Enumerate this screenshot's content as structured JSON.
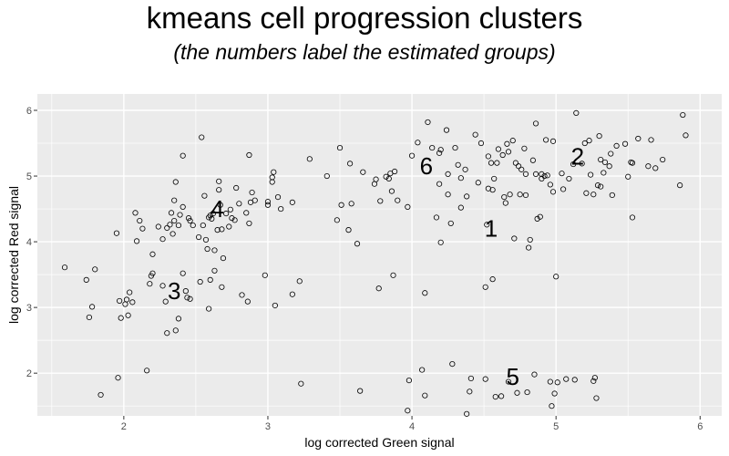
{
  "chart_data": {
    "type": "scatter",
    "title": "kmeans cell progression clusters",
    "subtitle": "(the numbers label the estimated groups)",
    "xlabel": "log corrected Green signal",
    "ylabel": "log corrected Red signal",
    "xlim": [
      1.4,
      6.15
    ],
    "ylim": [
      1.35,
      6.25
    ],
    "xticks": [
      2,
      3,
      4,
      5,
      6
    ],
    "yticks": [
      2,
      3,
      4,
      5,
      6
    ],
    "grid": true,
    "marker": "open-circle",
    "colors": {
      "panel": "#ebebeb",
      "grid": "#ffffff",
      "point": "#000000"
    },
    "cluster_labels": [
      {
        "text": "1",
        "x": 4.55,
        "y": 4.2
      },
      {
        "text": "2",
        "x": 5.15,
        "y": 5.3
      },
      {
        "text": "3",
        "x": 2.35,
        "y": 3.25
      },
      {
        "text": "4",
        "x": 2.65,
        "y": 4.5
      },
      {
        "text": "5",
        "x": 4.7,
        "y": 1.95
      },
      {
        "text": "6",
        "x": 4.1,
        "y": 5.15
      }
    ],
    "points": [
      [
        1.59,
        3.61
      ],
      [
        1.74,
        3.42
      ],
      [
        1.76,
        2.85
      ],
      [
        1.78,
        3.01
      ],
      [
        1.8,
        3.58
      ],
      [
        1.84,
        1.67
      ],
      [
        1.95,
        4.13
      ],
      [
        1.96,
        1.93
      ],
      [
        1.97,
        3.1
      ],
      [
        1.98,
        2.84
      ],
      [
        2.01,
        3.05
      ],
      [
        2.02,
        3.12
      ],
      [
        2.03,
        2.88
      ],
      [
        2.04,
        3.23
      ],
      [
        2.06,
        3.08
      ],
      [
        2.08,
        4.44
      ],
      [
        2.09,
        4.01
      ],
      [
        2.11,
        4.32
      ],
      [
        2.13,
        4.2
      ],
      [
        2.16,
        2.04
      ],
      [
        2.18,
        3.36
      ],
      [
        2.19,
        3.48
      ],
      [
        2.2,
        3.52
      ],
      [
        2.2,
        3.81
      ],
      [
        2.24,
        4.23
      ],
      [
        2.27,
        4.04
      ],
      [
        2.27,
        3.33
      ],
      [
        2.29,
        3.09
      ],
      [
        2.3,
        2.61
      ],
      [
        2.3,
        4.21
      ],
      [
        2.32,
        4.26
      ],
      [
        2.33,
        4.44
      ],
      [
        2.34,
        4.12
      ],
      [
        2.35,
        4.32
      ],
      [
        2.35,
        4.63
      ],
      [
        2.36,
        4.91
      ],
      [
        2.36,
        2.65
      ],
      [
        2.38,
        2.83
      ],
      [
        2.38,
        4.25
      ],
      [
        2.39,
        4.41
      ],
      [
        2.41,
        3.52
      ],
      [
        2.41,
        4.53
      ],
      [
        2.41,
        5.31
      ],
      [
        2.43,
        3.25
      ],
      [
        2.44,
        3.15
      ],
      [
        2.45,
        4.36
      ],
      [
        2.46,
        3.13
      ],
      [
        2.46,
        4.32
      ],
      [
        2.48,
        4.25
      ],
      [
        2.52,
        4.07
      ],
      [
        2.53,
        3.39
      ],
      [
        2.54,
        5.59
      ],
      [
        2.55,
        4.25
      ],
      [
        2.56,
        4.7
      ],
      [
        2.57,
        4.03
      ],
      [
        2.58,
        3.89
      ],
      [
        2.59,
        4.37
      ],
      [
        2.59,
        2.98
      ],
      [
        2.6,
        4.4
      ],
      [
        2.6,
        3.42
      ],
      [
        2.61,
        4.35
      ],
      [
        2.62,
        4.43
      ],
      [
        2.63,
        3.56
      ],
      [
        2.63,
        3.87
      ],
      [
        2.65,
        4.18
      ],
      [
        2.66,
        4.79
      ],
      [
        2.66,
        4.92
      ],
      [
        2.67,
        4.56
      ],
      [
        2.68,
        3.31
      ],
      [
        2.68,
        4.19
      ],
      [
        2.69,
        3.75
      ],
      [
        2.71,
        4.43
      ],
      [
        2.73,
        4.23
      ],
      [
        2.74,
        4.49
      ],
      [
        2.75,
        4.36
      ],
      [
        2.77,
        4.33
      ],
      [
        2.78,
        4.82
      ],
      [
        2.8,
        4.58
      ],
      [
        2.82,
        3.19
      ],
      [
        2.85,
        4.44
      ],
      [
        2.86,
        3.09
      ],
      [
        2.87,
        5.32
      ],
      [
        2.87,
        4.28
      ],
      [
        2.88,
        4.6
      ],
      [
        2.89,
        4.75
      ],
      [
        2.91,
        4.63
      ],
      [
        2.98,
        3.49
      ],
      [
        3.0,
        4.56
      ],
      [
        3.0,
        4.61
      ],
      [
        3.03,
        4.91
      ],
      [
        3.03,
        4.98
      ],
      [
        3.04,
        5.06
      ],
      [
        3.05,
        3.03
      ],
      [
        3.07,
        4.68
      ],
      [
        3.09,
        4.5
      ],
      [
        3.17,
        3.2
      ],
      [
        3.17,
        4.6
      ],
      [
        3.22,
        3.4
      ],
      [
        3.23,
        1.84
      ],
      [
        3.29,
        5.26
      ],
      [
        3.41,
        5.0
      ],
      [
        3.48,
        4.33
      ],
      [
        3.5,
        5.43
      ],
      [
        3.51,
        4.56
      ],
      [
        3.56,
        4.18
      ],
      [
        3.57,
        5.19
      ],
      [
        3.58,
        4.58
      ],
      [
        3.62,
        3.97
      ],
      [
        3.64,
        1.73
      ],
      [
        3.66,
        5.06
      ],
      [
        3.74,
        4.88
      ],
      [
        3.75,
        4.95
      ],
      [
        3.77,
        3.29
      ],
      [
        3.78,
        4.62
      ],
      [
        3.82,
        4.99
      ],
      [
        3.84,
        4.96
      ],
      [
        3.85,
        5.04
      ],
      [
        3.86,
        4.77
      ],
      [
        3.87,
        3.49
      ],
      [
        3.88,
        5.07
      ],
      [
        3.9,
        4.63
      ],
      [
        3.97,
        4.53
      ],
      [
        3.97,
        1.43
      ],
      [
        3.98,
        1.89
      ],
      [
        4.0,
        5.31
      ],
      [
        4.04,
        5.51
      ],
      [
        4.07,
        2.05
      ],
      [
        4.09,
        1.66
      ],
      [
        4.09,
        3.22
      ],
      [
        4.11,
        5.82
      ],
      [
        4.14,
        5.43
      ],
      [
        4.17,
        4.37
      ],
      [
        4.19,
        5.35
      ],
      [
        4.19,
        4.88
      ],
      [
        4.2,
        3.99
      ],
      [
        4.2,
        5.4
      ],
      [
        4.24,
        5.7
      ],
      [
        4.25,
        5.03
      ],
      [
        4.25,
        4.72
      ],
      [
        4.27,
        4.28
      ],
      [
        4.28,
        2.14
      ],
      [
        4.3,
        5.43
      ],
      [
        4.32,
        5.17
      ],
      [
        4.34,
        4.52
      ],
      [
        4.34,
        4.97
      ],
      [
        4.37,
        5.1
      ],
      [
        4.38,
        1.38
      ],
      [
        4.38,
        4.69
      ],
      [
        4.4,
        1.72
      ],
      [
        4.41,
        1.92
      ],
      [
        4.44,
        5.63
      ],
      [
        4.46,
        4.9
      ],
      [
        4.48,
        5.5
      ],
      [
        4.51,
        3.31
      ],
      [
        4.51,
        1.91
      ],
      [
        4.52,
        4.26
      ],
      [
        4.53,
        5.3
      ],
      [
        4.53,
        4.81
      ],
      [
        4.55,
        5.2
      ],
      [
        4.56,
        4.79
      ],
      [
        4.56,
        3.43
      ],
      [
        4.57,
        4.96
      ],
      [
        4.58,
        1.64
      ],
      [
        4.59,
        5.2
      ],
      [
        4.6,
        5.41
      ],
      [
        4.62,
        1.65
      ],
      [
        4.63,
        5.32
      ],
      [
        4.64,
        4.68
      ],
      [
        4.65,
        4.59
      ],
      [
        4.66,
        5.49
      ],
      [
        4.67,
        5.37
      ],
      [
        4.67,
        1.87
      ],
      [
        4.68,
        4.72
      ],
      [
        4.7,
        5.54
      ],
      [
        4.71,
        4.05
      ],
      [
        4.72,
        5.2
      ],
      [
        4.73,
        1.7
      ],
      [
        4.74,
        5.15
      ],
      [
        4.75,
        4.72
      ],
      [
        4.76,
        5.1
      ],
      [
        4.78,
        5.42
      ],
      [
        4.79,
        5.03
      ],
      [
        4.79,
        4.71
      ],
      [
        4.8,
        1.71
      ],
      [
        4.81,
        3.91
      ],
      [
        4.82,
        4.03
      ],
      [
        4.84,
        5.24
      ],
      [
        4.85,
        1.98
      ],
      [
        4.86,
        5.8
      ],
      [
        4.86,
        5.03
      ],
      [
        4.87,
        4.35
      ],
      [
        4.89,
        4.38
      ],
      [
        4.9,
        5.03
      ],
      [
        4.9,
        4.96
      ],
      [
        4.92,
        5.0
      ],
      [
        4.93,
        5.55
      ],
      [
        4.94,
        5.01
      ],
      [
        4.96,
        1.87
      ],
      [
        4.96,
        4.87
      ],
      [
        4.97,
        1.5
      ],
      [
        4.98,
        5.53
      ],
      [
        4.98,
        4.76
      ],
      [
        4.99,
        1.69
      ],
      [
        5.0,
        3.47
      ],
      [
        5.01,
        1.86
      ],
      [
        5.04,
        5.04
      ],
      [
        5.05,
        4.8
      ],
      [
        5.07,
        1.91
      ],
      [
        5.09,
        4.96
      ],
      [
        5.12,
        5.18
      ],
      [
        5.13,
        1.9
      ],
      [
        5.14,
        5.96
      ],
      [
        5.18,
        5.19
      ],
      [
        5.2,
        5.5
      ],
      [
        5.21,
        4.74
      ],
      [
        5.23,
        5.54
      ],
      [
        5.24,
        5.02
      ],
      [
        5.26,
        1.88
      ],
      [
        5.26,
        4.72
      ],
      [
        5.27,
        1.93
      ],
      [
        5.28,
        1.62
      ],
      [
        5.29,
        4.86
      ],
      [
        5.3,
        5.61
      ],
      [
        5.31,
        5.25
      ],
      [
        5.31,
        4.84
      ],
      [
        5.33,
        5.05
      ],
      [
        5.34,
        5.21
      ],
      [
        5.37,
        5.15
      ],
      [
        5.38,
        5.34
      ],
      [
        5.39,
        4.71
      ],
      [
        5.42,
        5.46
      ],
      [
        5.48,
        5.49
      ],
      [
        5.5,
        4.99
      ],
      [
        5.52,
        5.21
      ],
      [
        5.53,
        4.37
      ],
      [
        5.53,
        5.2
      ],
      [
        5.57,
        5.57
      ],
      [
        5.64,
        5.15
      ],
      [
        5.66,
        5.55
      ],
      [
        5.69,
        5.12
      ],
      [
        5.74,
        5.25
      ],
      [
        5.86,
        4.86
      ],
      [
        5.88,
        5.93
      ],
      [
        5.9,
        5.62
      ]
    ]
  }
}
